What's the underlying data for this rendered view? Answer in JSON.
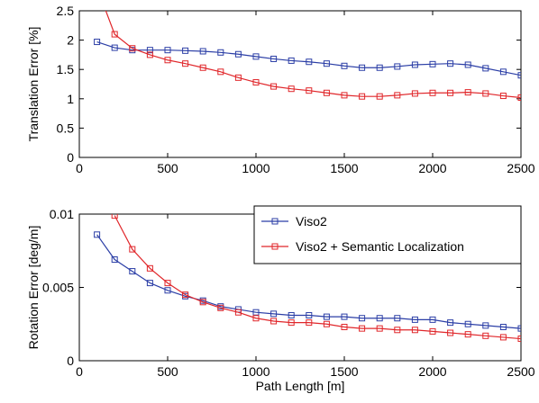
{
  "chart_data": [
    {
      "type": "line",
      "title": "",
      "xlabel": "",
      "ylabel": "Translation Error [%]",
      "xlim": [
        0,
        2500
      ],
      "ylim": [
        0,
        2.5
      ],
      "xticks": [
        0,
        500,
        1000,
        1500,
        2000,
        2500
      ],
      "xtick_labels": [
        "0",
        "500",
        "1000",
        "1500",
        "2000",
        "2500"
      ],
      "yticks": [
        0,
        0.5,
        1,
        1.5,
        2,
        2.5
      ],
      "ytick_labels": [
        "0",
        "0.5",
        "1",
        "1.5",
        "2",
        "2.5"
      ],
      "grid": false,
      "legend": false,
      "series": [
        {
          "name": "Viso2",
          "color": "#2b3ea6",
          "marker": "square",
          "x": [
            100,
            200,
            300,
            400,
            500,
            600,
            700,
            800,
            900,
            1000,
            1100,
            1200,
            1300,
            1400,
            1500,
            1600,
            1700,
            1800,
            1900,
            2000,
            2100,
            2200,
            2300,
            2400,
            2500
          ],
          "y": [
            1.97,
            1.87,
            1.83,
            1.83,
            1.83,
            1.82,
            1.81,
            1.79,
            1.76,
            1.72,
            1.68,
            1.65,
            1.63,
            1.6,
            1.56,
            1.53,
            1.53,
            1.55,
            1.58,
            1.59,
            1.6,
            1.58,
            1.52,
            1.46,
            1.4
          ]
        },
        {
          "name": "Viso2 + Semantic Localization",
          "color": "#e0262a",
          "marker": "square",
          "clip": true,
          "x": [
            100,
            200,
            300,
            400,
            500,
            600,
            700,
            800,
            900,
            1000,
            1100,
            1200,
            1300,
            1400,
            1500,
            1600,
            1700,
            1800,
            1900,
            2000,
            2100,
            2200,
            2300,
            2400,
            2500
          ],
          "y": [
            2.9,
            2.1,
            1.86,
            1.75,
            1.66,
            1.6,
            1.53,
            1.46,
            1.36,
            1.28,
            1.21,
            1.17,
            1.14,
            1.1,
            1.06,
            1.04,
            1.04,
            1.06,
            1.09,
            1.1,
            1.1,
            1.11,
            1.09,
            1.05,
            1.02
          ]
        }
      ]
    },
    {
      "type": "line",
      "title": "",
      "xlabel": "Path Length [m]",
      "ylabel": "Rotation Error [deg/m]",
      "xlim": [
        0,
        2500
      ],
      "ylim": [
        0,
        0.01
      ],
      "xticks": [
        0,
        500,
        1000,
        1500,
        2000,
        2500
      ],
      "xtick_labels": [
        "0",
        "500",
        "1000",
        "1500",
        "2000",
        "2500"
      ],
      "yticks": [
        0,
        0.005,
        0.01
      ],
      "ytick_labels": [
        "0",
        "0.005",
        "0.01"
      ],
      "grid": false,
      "legend": true,
      "legend_position": "top-right",
      "series": [
        {
          "name": "Viso2",
          "color": "#2b3ea6",
          "marker": "square",
          "x": [
            100,
            200,
            300,
            400,
            500,
            600,
            700,
            800,
            900,
            1000,
            1100,
            1200,
            1300,
            1400,
            1500,
            1600,
            1700,
            1800,
            1900,
            2000,
            2100,
            2200,
            2300,
            2400,
            2500
          ],
          "y": [
            0.0086,
            0.0069,
            0.0061,
            0.0053,
            0.0048,
            0.0044,
            0.0041,
            0.0037,
            0.0035,
            0.0033,
            0.0032,
            0.0031,
            0.0031,
            0.003,
            0.003,
            0.0029,
            0.0029,
            0.0029,
            0.0028,
            0.0028,
            0.0026,
            0.0025,
            0.0024,
            0.0023,
            0.0022
          ]
        },
        {
          "name": "Viso2 + Semantic Localization",
          "color": "#e0262a",
          "marker": "square",
          "x": [
            200,
            300,
            400,
            500,
            600,
            700,
            800,
            900,
            1000,
            1100,
            1200,
            1300,
            1400,
            1500,
            1600,
            1700,
            1800,
            1900,
            2000,
            2100,
            2200,
            2300,
            2400,
            2500
          ],
          "y": [
            0.0099,
            0.0076,
            0.0063,
            0.0053,
            0.0045,
            0.004,
            0.0036,
            0.0033,
            0.0029,
            0.0027,
            0.0026,
            0.0026,
            0.0025,
            0.0023,
            0.0022,
            0.0022,
            0.0021,
            0.0021,
            0.002,
            0.0019,
            0.0018,
            0.0017,
            0.0016,
            0.0015
          ]
        }
      ]
    }
  ]
}
